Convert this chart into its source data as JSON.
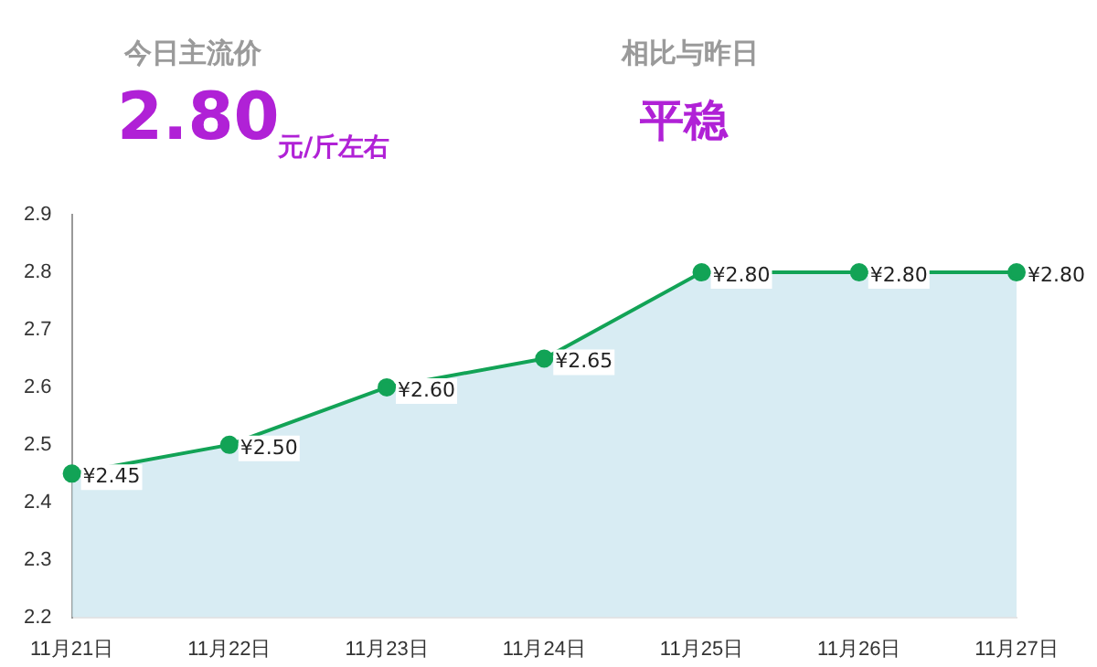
{
  "chart_data": {
    "type": "area",
    "annotations": [
      "今日主流价",
      "2.80",
      "元/斤左右",
      "相比与昨日",
      "平稳"
    ],
    "categories": [
      "11月21日",
      "11月22日",
      "11月23日",
      "11月24日",
      "11月25日",
      "11月26日",
      "11月27日"
    ],
    "series": [
      {
        "color": "#12a356",
        "values": [
          2.45,
          2.5,
          2.6,
          2.65,
          2.8,
          2.8,
          2.8
        ],
        "value_labels": [
          "¥2.45",
          "¥2.50",
          "¥2.60",
          "¥2.65",
          "¥2.80",
          "¥2.80",
          "¥2.80"
        ]
      }
    ],
    "ylim": [
      2.2,
      2.9
    ],
    "yticks": [
      2.2,
      2.3,
      2.4,
      2.5,
      2.6,
      2.7,
      2.8,
      2.9
    ],
    "grid": false,
    "legend": false,
    "marker": "circle",
    "line_style": "solid"
  }
}
